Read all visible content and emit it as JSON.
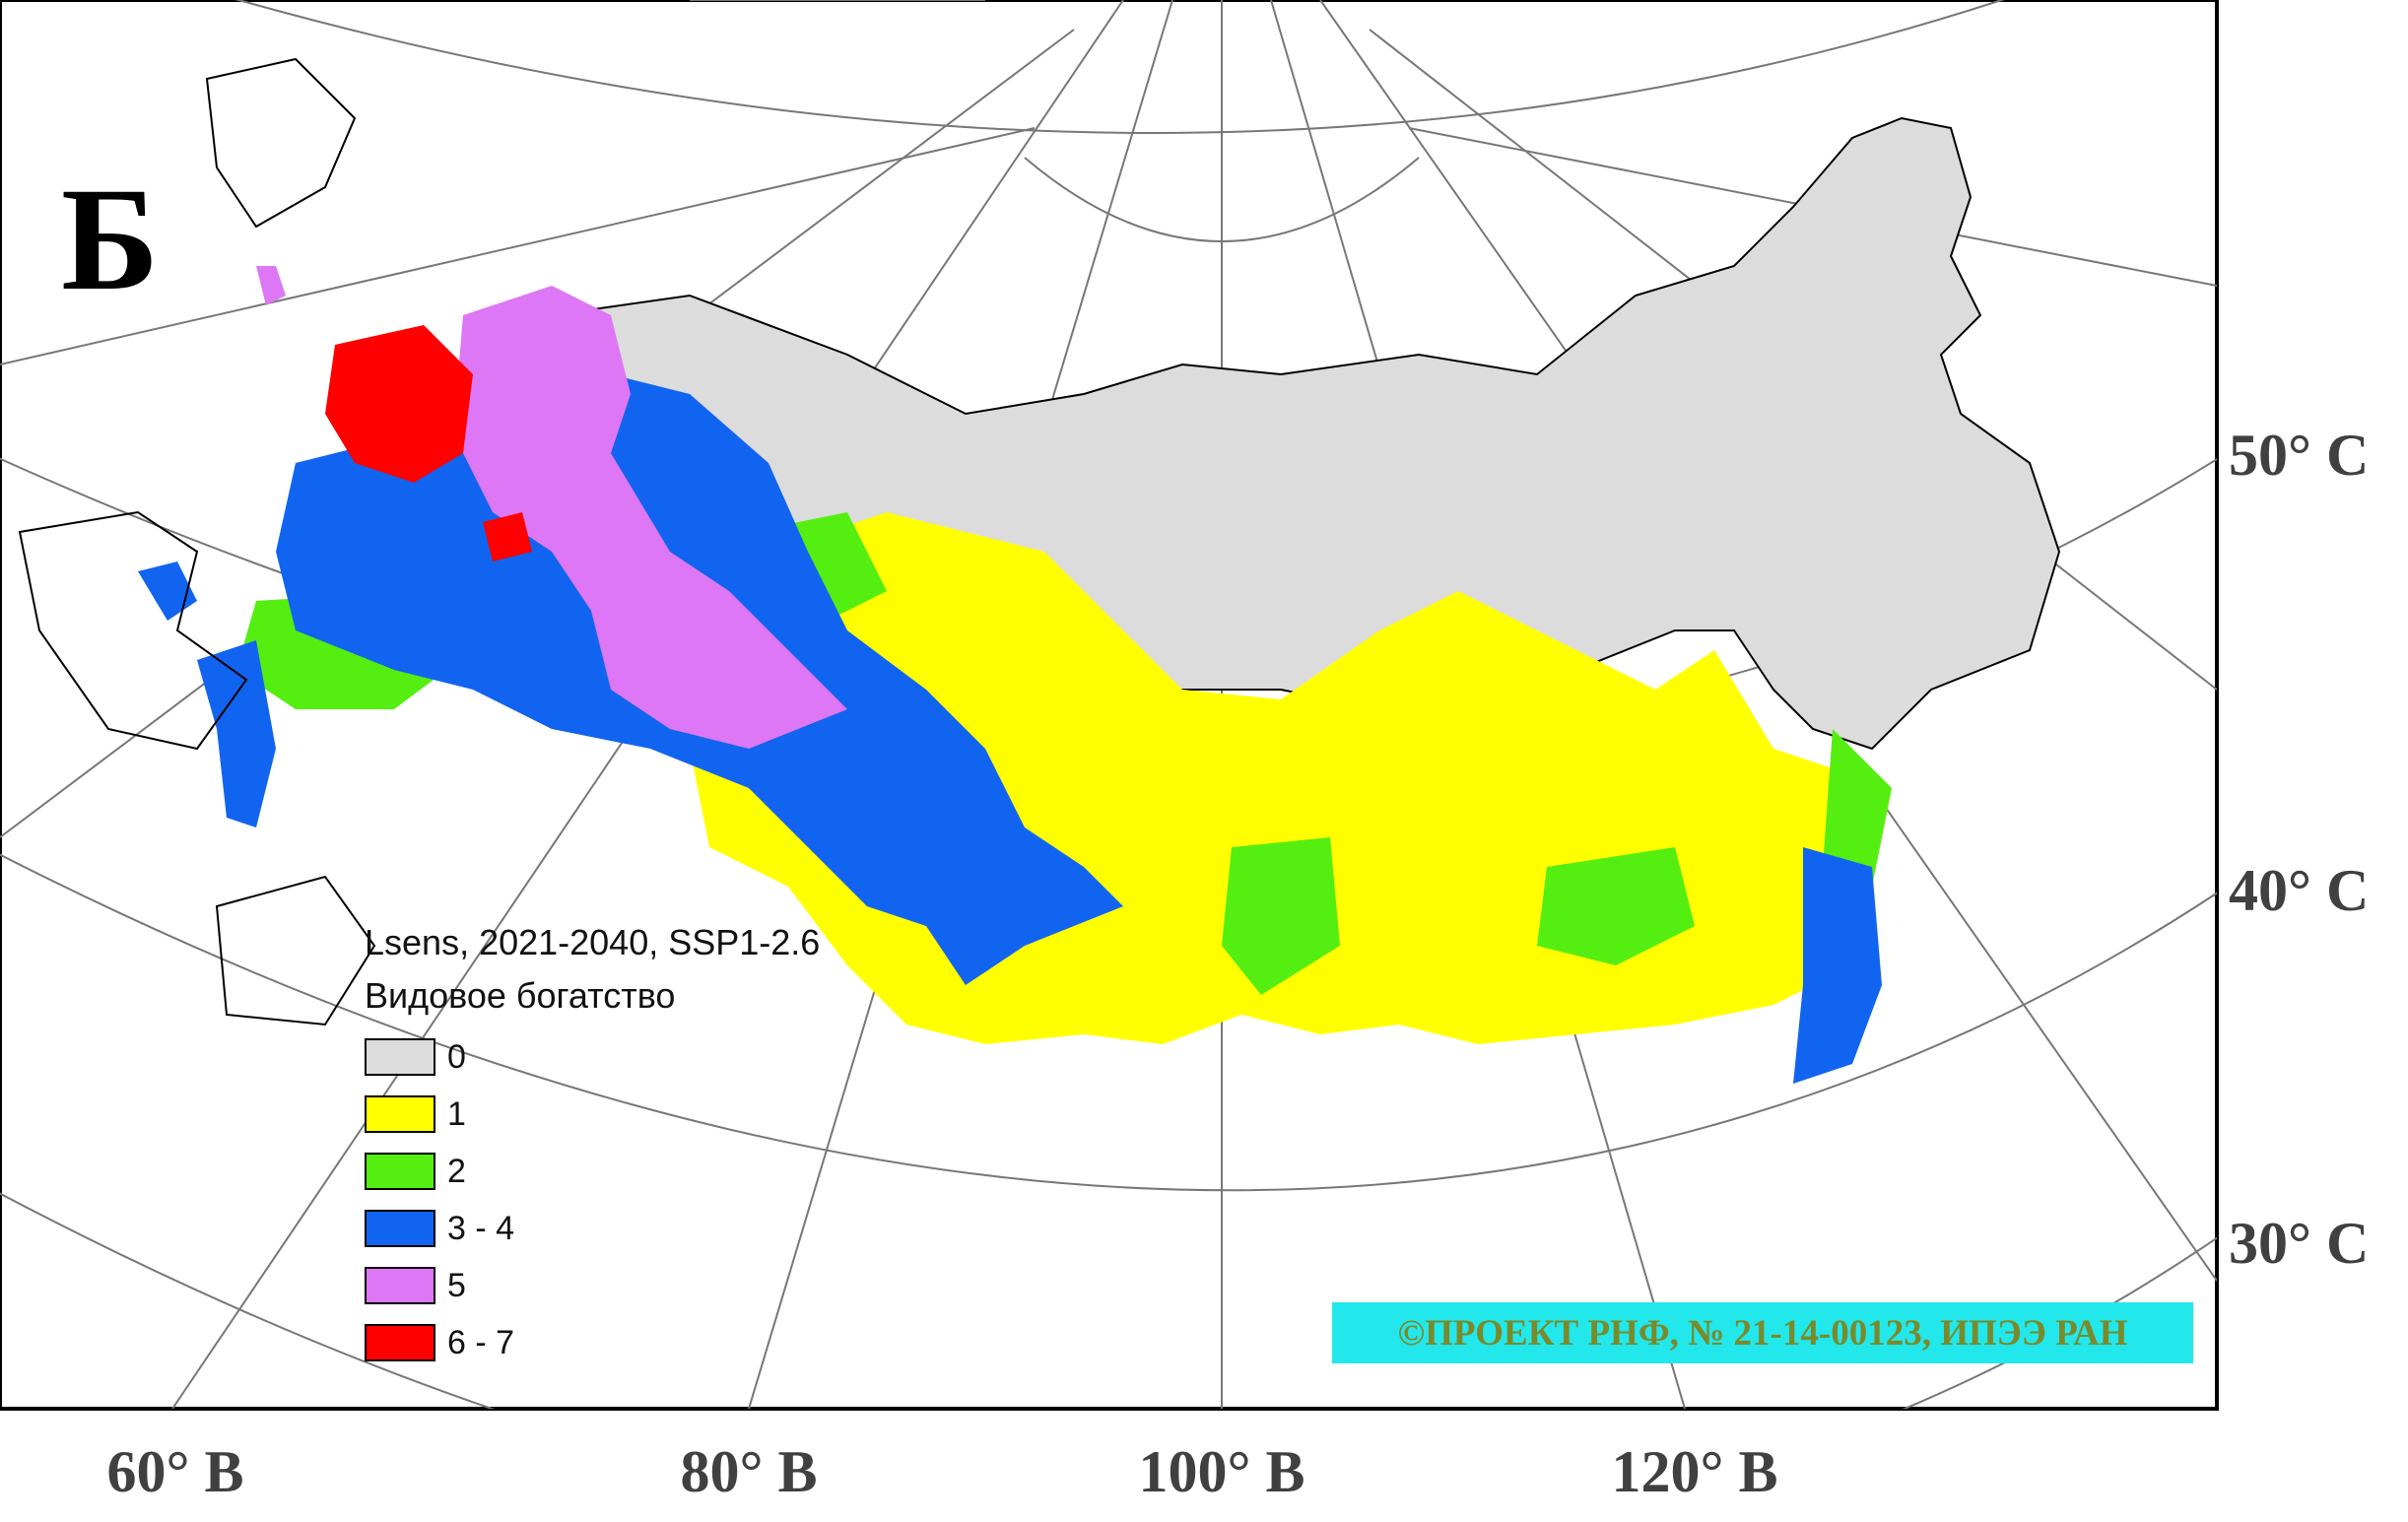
{
  "panel_letter": "Б",
  "legend": {
    "title_line1": "Lsens, 2021-2040, SSP1-2.6",
    "title_line2": "Видовое богатство",
    "items": [
      {
        "label": "0",
        "color": "#dcdcdc"
      },
      {
        "label": "1",
        "color": "#ffff00"
      },
      {
        "label": "2",
        "color": "#55ee11"
      },
      {
        "label": "3 - 4",
        "color": "#1164f0"
      },
      {
        "label": "5",
        "color": "#dd77f5"
      },
      {
        "label": "6 - 7",
        "color": "#ff0000"
      }
    ]
  },
  "latitude_labels": [
    "50° С",
    "40° С",
    "30° С"
  ],
  "longitude_labels": [
    "60° В",
    "80° В",
    "100° В",
    "120° В"
  ],
  "credit": "©ПРОЕКТ РНФ, № 21-14-00123, ИПЭЭ РАН",
  "colors": {
    "class_0": "#dcdcdc",
    "class_1": "#ffff00",
    "class_2": "#55ee11",
    "class_3_4": "#1164f0",
    "class_5": "#dd77f5",
    "class_6_7": "#ff0000",
    "credit_background": "#22e8ec"
  }
}
